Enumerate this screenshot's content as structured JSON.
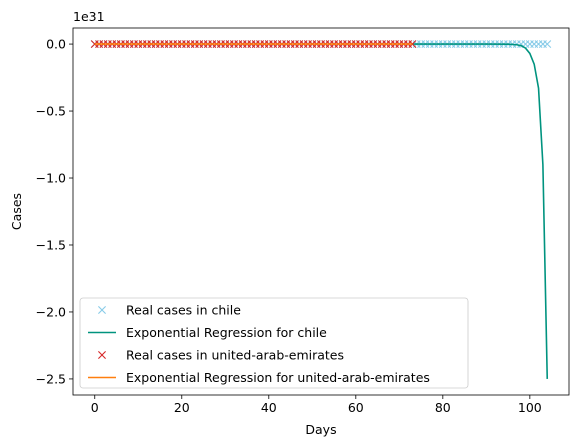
{
  "chart_data": {
    "type": "scatter",
    "xlabel": "Days",
    "ylabel": "Cases",
    "y_offset_label": "1e31",
    "xlim": [
      -5,
      109
    ],
    "ylim": [
      -2.62,
      0.12
    ],
    "x_ticks": [
      0,
      20,
      40,
      60,
      80,
      100
    ],
    "y_ticks": [
      0.0,
      -0.5,
      -1.0,
      -1.5,
      -2.0,
      -2.5
    ],
    "x_tick_labels": [
      "0",
      "20",
      "40",
      "60",
      "80",
      "100"
    ],
    "y_tick_labels": [
      "0.0",
      "−0.5",
      "−1.0",
      "−1.5",
      "−2.0",
      "−2.5"
    ],
    "grid": false,
    "legend_position": "lower-left",
    "series": [
      {
        "name": "Real cases in chile",
        "kind": "markers",
        "marker": "x",
        "color": "#87cbe8",
        "x_range": [
          0,
          104
        ],
        "y_constant": 0.0
      },
      {
        "name": "Exponential Regression for chile",
        "kind": "line",
        "color": "#00937f",
        "x": [
          73,
          80,
          90,
          95,
          97,
          98,
          99,
          100,
          101,
          102,
          103,
          104
        ],
        "y": [
          0.0,
          0.0,
          0.0,
          -0.001,
          -0.005,
          -0.012,
          -0.03,
          -0.07,
          -0.15,
          -0.33,
          -0.9,
          -2.5
        ]
      },
      {
        "name": "Real cases in united-arab-emirates",
        "kind": "markers",
        "marker": "x",
        "color": "#d62728",
        "x_range": [
          0,
          73
        ],
        "y_constant": 0.0
      },
      {
        "name": "Exponential Regression for united-arab-emirates",
        "kind": "line",
        "color": "#ff7f0e",
        "x": [
          0,
          73
        ],
        "y": [
          0.0,
          0.0
        ]
      }
    ]
  }
}
